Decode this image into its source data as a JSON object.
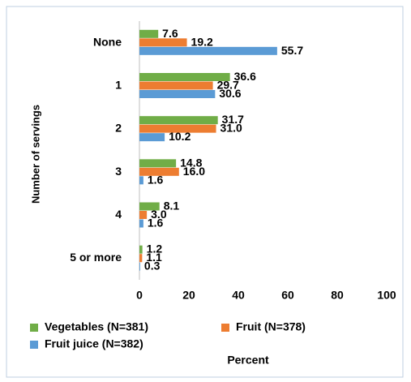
{
  "chart_data": {
    "type": "barh",
    "categories": [
      "None",
      "1",
      "2",
      "3",
      "4",
      "5 or more"
    ],
    "series": [
      {
        "name": "Vegetables (N=381)",
        "color": "#70ad47",
        "values": [
          7.6,
          36.6,
          31.7,
          14.8,
          8.1,
          1.2
        ],
        "value_labels": [
          "7.6",
          "36.6",
          "31.7",
          "14.8",
          "8.1",
          "1.2"
        ]
      },
      {
        "name": "Fruit (N=378)",
        "color": "#ed7d31",
        "values": [
          19.2,
          29.7,
          31,
          16,
          3,
          1.1
        ],
        "value_labels": [
          "19.2",
          "29.7",
          "31.0",
          "16.0",
          "3.0",
          "1.1"
        ]
      },
      {
        "name": "Fruit juice (N=382)",
        "color": "#5b9bd5",
        "values": [
          55.7,
          30.6,
          10.2,
          1.6,
          1.6,
          0.3
        ],
        "value_labels": [
          "55.7",
          "30.6",
          "10.2",
          "1.6",
          "1.6",
          "0.3"
        ]
      }
    ],
    "xlabel": "Percent",
    "ylabel": "Number of servings",
    "xlim": [
      0,
      100
    ],
    "xticks": [
      0,
      20,
      40,
      60,
      80,
      100
    ],
    "grid": false
  }
}
